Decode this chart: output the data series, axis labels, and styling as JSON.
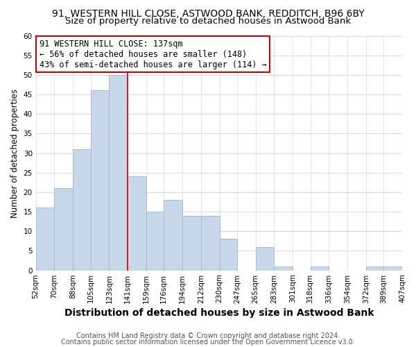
{
  "title": "91, WESTERN HILL CLOSE, ASTWOOD BANK, REDDITCH, B96 6BY",
  "subtitle": "Size of property relative to detached houses in Astwood Bank",
  "xlabel": "Distribution of detached houses by size in Astwood Bank",
  "ylabel": "Number of detached properties",
  "bar_color": "#c8d8ea",
  "bar_edge_color": "#a0bcd4",
  "background_color": "#ffffff",
  "grid_color": "#d0dce8",
  "vline_x": 141,
  "vline_color": "#cc0000",
  "bin_edges": [
    52,
    70,
    88,
    105,
    123,
    141,
    159,
    176,
    194,
    212,
    230,
    247,
    265,
    283,
    301,
    318,
    336,
    354,
    372,
    389,
    407
  ],
  "bin_labels": [
    "52sqm",
    "70sqm",
    "88sqm",
    "105sqm",
    "123sqm",
    "141sqm",
    "159sqm",
    "176sqm",
    "194sqm",
    "212sqm",
    "230sqm",
    "247sqm",
    "265sqm",
    "283sqm",
    "301sqm",
    "318sqm",
    "336sqm",
    "354sqm",
    "372sqm",
    "389sqm",
    "407sqm"
  ],
  "counts": [
    16,
    21,
    31,
    46,
    50,
    24,
    15,
    18,
    14,
    14,
    8,
    0,
    6,
    1,
    0,
    1,
    0,
    0,
    1,
    1
  ],
  "ylim": [
    0,
    60
  ],
  "yticks": [
    0,
    5,
    10,
    15,
    20,
    25,
    30,
    35,
    40,
    45,
    50,
    55,
    60
  ],
  "annotation_title": "91 WESTERN HILL CLOSE: 137sqm",
  "annotation_line1": "← 56% of detached houses are smaller (148)",
  "annotation_line2": "43% of semi-detached houses are larger (114) →",
  "footer1": "Contains HM Land Registry data © Crown copyright and database right 2024.",
  "footer2": "Contains public sector information licensed under the Open Government Licence v3.0.",
  "title_fontsize": 10,
  "subtitle_fontsize": 9.5,
  "xlabel_fontsize": 10,
  "ylabel_fontsize": 8.5,
  "tick_fontsize": 7.5,
  "annotation_fontsize": 8.5,
  "footer_fontsize": 7
}
